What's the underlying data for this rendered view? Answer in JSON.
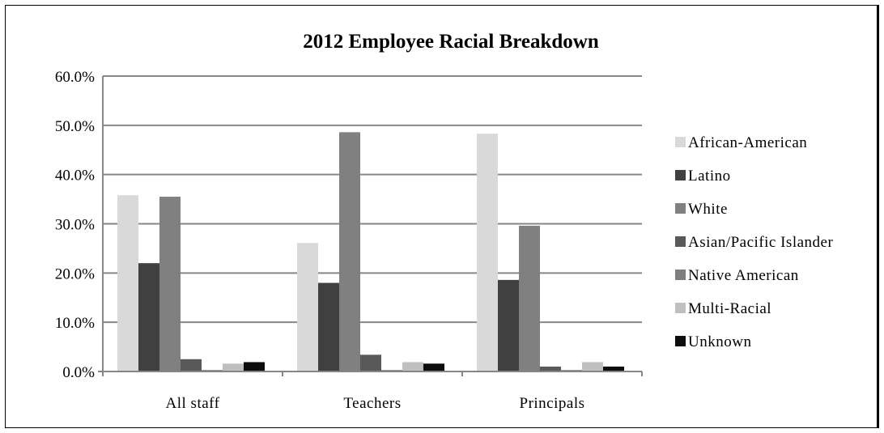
{
  "chart_data": {
    "type": "bar",
    "title": "2012 Employee Racial Breakdown",
    "xlabel": "",
    "ylabel": "",
    "categories": [
      "All staff",
      "Teachers",
      "Principals"
    ],
    "ylim": [
      0,
      60
    ],
    "yticks": [
      "0.0%",
      "10.0%",
      "20.0%",
      "30.0%",
      "40.0%",
      "50.0%",
      "60.0%"
    ],
    "grid": true,
    "legend_position": "right",
    "series": [
      {
        "name": "African-American",
        "color": "#d9d9d9",
        "values": [
          35.8,
          26.1,
          48.3
        ]
      },
      {
        "name": "Latino",
        "color": "#404040",
        "values": [
          22.0,
          18.0,
          18.6
        ]
      },
      {
        "name": "White",
        "color": "#808080",
        "values": [
          35.5,
          48.6,
          29.6
        ]
      },
      {
        "name": "Asian/Pacific Islander",
        "color": "#595959",
        "values": [
          2.5,
          3.4,
          1.0
        ]
      },
      {
        "name": "Native American",
        "color": "#7f7f7f",
        "values": [
          0.3,
          0.3,
          0.3
        ]
      },
      {
        "name": "Multi-Racial",
        "color": "#bfbfbf",
        "values": [
          1.6,
          1.9,
          1.9
        ]
      },
      {
        "name": "Unknown",
        "color": "#0d0d0d",
        "values": [
          1.9,
          1.6,
          1.0
        ]
      }
    ]
  }
}
